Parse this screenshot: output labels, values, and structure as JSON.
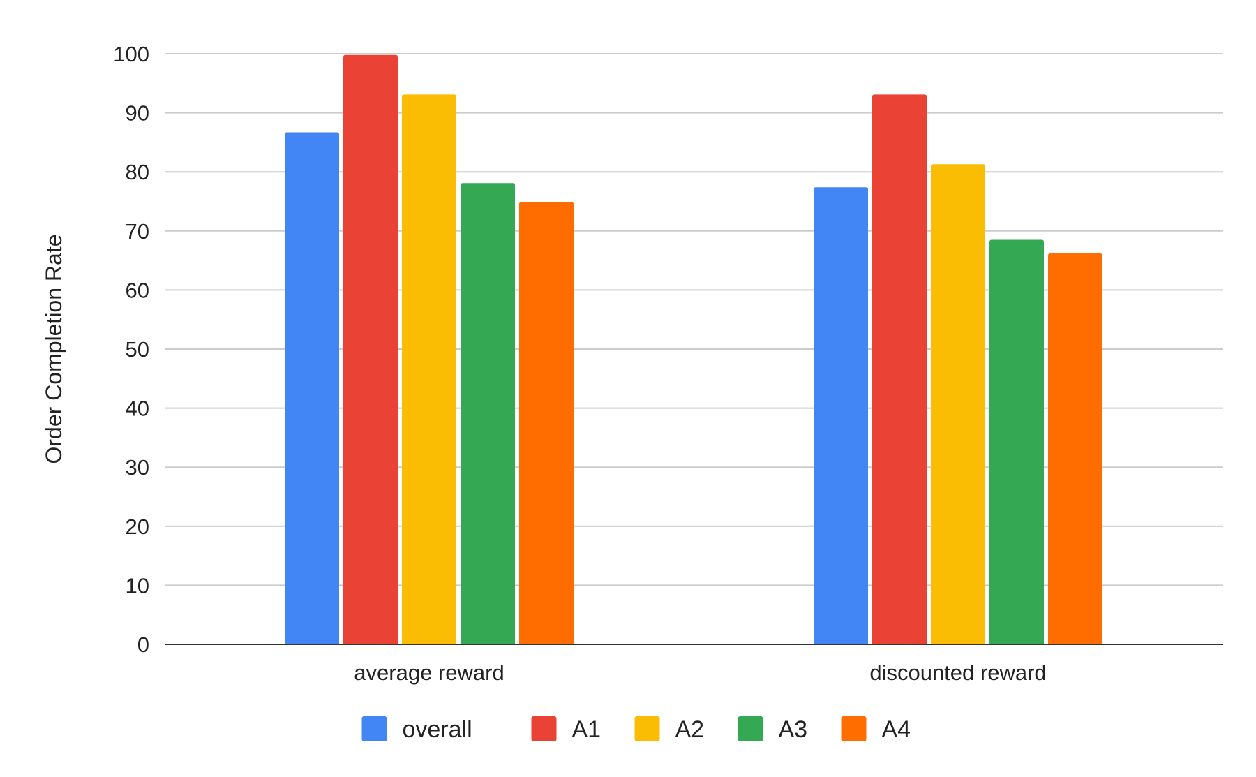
{
  "chart_data": {
    "type": "bar",
    "title": "",
    "xlabel": "",
    "ylabel": "Order Completion Rate",
    "ylim": [
      0,
      100
    ],
    "yticks": [
      0,
      10,
      20,
      30,
      40,
      50,
      60,
      70,
      80,
      90,
      100
    ],
    "grid": true,
    "legend_position": "bottom",
    "categories": [
      "average reward",
      "discounted reward"
    ],
    "series": [
      {
        "name": "overall",
        "color": "#4285F4",
        "values": [
          86.7,
          77.4
        ]
      },
      {
        "name": "A1",
        "color": "#EA4335",
        "values": [
          99.8,
          93.1
        ]
      },
      {
        "name": "A2",
        "color": "#FBBC04",
        "values": [
          93.1,
          81.3
        ]
      },
      {
        "name": "A3",
        "color": "#34A853",
        "values": [
          78.1,
          68.5
        ]
      },
      {
        "name": "A4",
        "color": "#FF6D01",
        "values": [
          74.9,
          66.2
        ]
      }
    ]
  }
}
